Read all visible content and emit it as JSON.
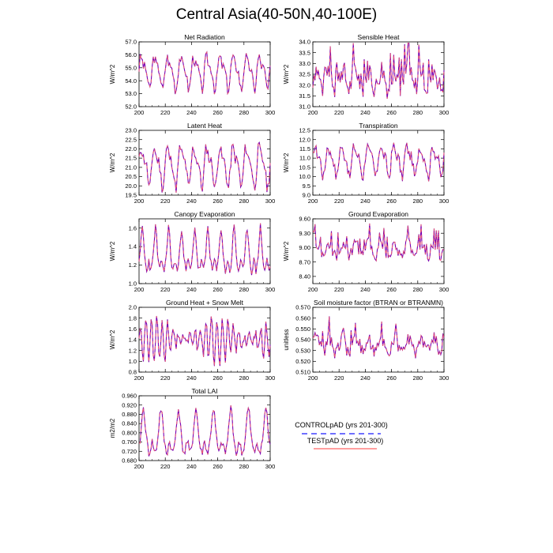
{
  "title": "Central Asia(40-50N,40-100E)",
  "colors": {
    "control": "#1a1aff",
    "test": "#ff6666",
    "overlap": "#7a00b0"
  },
  "legend": {
    "control": "CONTROLpAD (yrs 201-300)",
    "test": "TESTpAD (yrs 201-300)"
  },
  "chart_data": [
    {
      "type": "line",
      "title": "Net Radiation",
      "xlabel": "",
      "ylabel": "W/m^2",
      "xlim": [
        200,
        300
      ],
      "ylim": [
        52.0,
        57.0
      ],
      "xticks": [
        "200",
        "220",
        "240",
        "260",
        "280",
        "300"
      ],
      "yticks": [
        "52.0",
        "53.0",
        "54.0",
        "55.0",
        "56.0",
        "57.0"
      ],
      "pattern": {
        "kind": "seasonal",
        "base": 54.7,
        "amp": 1.5,
        "period": 12,
        "noise": 0.45,
        "seed": 3
      },
      "series": [
        {
          "name": "CONTROLpAD (yrs 201-300)"
        },
        {
          "name": "TESTpAD (yrs 201-300)"
        }
      ]
    },
    {
      "type": "line",
      "title": "Sensible Heat",
      "xlabel": "",
      "ylabel": "W/m^2",
      "xlim": [
        200,
        300
      ],
      "ylim": [
        31.0,
        34.0
      ],
      "xticks": [
        "200",
        "220",
        "240",
        "260",
        "280",
        "300"
      ],
      "yticks": [
        "31.0",
        "31.5",
        "32.0",
        "32.5",
        "33.0",
        "33.5",
        "34.0"
      ],
      "pattern": {
        "kind": "spiky",
        "base": 32.3,
        "amp": 0.9,
        "period": 12,
        "noise": 0.55,
        "seed": 7
      },
      "series": [
        {
          "name": "CONTROLpAD (yrs 201-300)"
        },
        {
          "name": "TESTpAD (yrs 201-300)"
        }
      ]
    },
    {
      "type": "line",
      "title": "Latent Heat",
      "xlabel": "",
      "ylabel": "W/m^2",
      "xlim": [
        200,
        300
      ],
      "ylim": [
        19.5,
        23.0
      ],
      "xticks": [
        "200",
        "220",
        "240",
        "260",
        "280",
        "300"
      ],
      "yticks": [
        "19.5",
        "20.0",
        "20.5",
        "21.0",
        "21.5",
        "22.0",
        "22.5",
        "23.0"
      ],
      "pattern": {
        "kind": "seasonal",
        "base": 21.1,
        "amp": 1.3,
        "period": 12,
        "noise": 0.35,
        "seed": 11
      },
      "series": [
        {
          "name": "CONTROLpAD (yrs 201-300)"
        },
        {
          "name": "TESTpAD (yrs 201-300)"
        }
      ]
    },
    {
      "type": "line",
      "title": "Transpiration",
      "xlabel": "",
      "ylabel": "W/m^2",
      "xlim": [
        200,
        300
      ],
      "ylim": [
        9.0,
        12.5
      ],
      "xticks": [
        "200",
        "220",
        "240",
        "260",
        "280",
        "300"
      ],
      "yticks": [
        "9.0",
        "9.5",
        "10.0",
        "10.5",
        "11.0",
        "11.5",
        "12.0",
        "12.5"
      ],
      "pattern": {
        "kind": "seasonal",
        "base": 10.9,
        "amp": 1.0,
        "period": 12,
        "noise": 0.3,
        "seed": 17
      },
      "series": [
        {
          "name": "CONTROLpAD (yrs 201-300)"
        },
        {
          "name": "TESTpAD (yrs 201-300)"
        }
      ]
    },
    {
      "type": "line",
      "title": "Canopy Evaporation",
      "xlabel": "",
      "ylabel": "W/m^2",
      "xlim": [
        200,
        300
      ],
      "ylim": [
        1.0,
        1.7
      ],
      "xticks": [
        "200",
        "220",
        "240",
        "260",
        "280",
        "300"
      ],
      "yticks": [
        "1.0",
        "1.2",
        "1.4",
        "1.6"
      ],
      "pattern": {
        "kind": "peaky",
        "base": 1.33,
        "amp": 0.3,
        "period": 12,
        "noise": 0.05,
        "seed": 23
      },
      "series": [
        {
          "name": "CONTROLpAD (yrs 201-300)"
        },
        {
          "name": "TESTpAD (yrs 201-300)"
        }
      ]
    },
    {
      "type": "line",
      "title": "Ground Evaporation",
      "xlabel": "",
      "ylabel": "W/m^2",
      "xlim": [
        200,
        300
      ],
      "ylim": [
        8.25,
        9.6
      ],
      "xticks": [
        "200",
        "220",
        "240",
        "260",
        "280",
        "300"
      ],
      "yticks": [
        "8.40",
        "8.70",
        "9.00",
        "9.30",
        "9.60"
      ],
      "pattern": {
        "kind": "spiky",
        "base": 8.95,
        "amp": 0.28,
        "period": 12,
        "noise": 0.12,
        "seed": 29
      },
      "series": [
        {
          "name": "CONTROLpAD (yrs 201-300)"
        },
        {
          "name": "TESTpAD (yrs 201-300)"
        }
      ]
    },
    {
      "type": "line",
      "title": "Ground Heat + Snow Melt",
      "xlabel": "",
      "ylabel": "W/m^2",
      "xlim": [
        200,
        300
      ],
      "ylim": [
        0.8,
        2.0
      ],
      "xticks": [
        "200",
        "220",
        "240",
        "260",
        "280",
        "300"
      ],
      "yticks": [
        "0.8",
        "1.0",
        "1.2",
        "1.4",
        "1.6",
        "1.8",
        "2.0"
      ],
      "pattern": {
        "kind": "oscillating",
        "base": 1.4,
        "amp": 0.42,
        "period": 5,
        "noise": 0.1,
        "seed": 31
      },
      "series": [
        {
          "name": "CONTROLpAD (yrs 201-300)"
        },
        {
          "name": "TESTpAD (yrs 201-300)"
        }
      ]
    },
    {
      "type": "line",
      "title": "Soil moisture factor (BTRAN or BTRANMN)",
      "xlabel": "",
      "ylabel": "unitless",
      "xlim": [
        200,
        300
      ],
      "ylim": [
        0.51,
        0.57
      ],
      "xticks": [
        "200",
        "220",
        "240",
        "260",
        "280",
        "300"
      ],
      "yticks": [
        "0.510",
        "0.520",
        "0.530",
        "0.540",
        "0.550",
        "0.560",
        "0.570"
      ],
      "pattern": {
        "kind": "spiky",
        "base": 0.535,
        "amp": 0.012,
        "period": 12,
        "noise": 0.007,
        "seed": 37
      },
      "series": [
        {
          "name": "CONTROLpAD (yrs 201-300)"
        },
        {
          "name": "TESTpAD (yrs 201-300)"
        }
      ]
    },
    {
      "type": "line",
      "title": "Total LAI",
      "xlabel": "",
      "ylabel": "m2/m2",
      "xlim": [
        200,
        300
      ],
      "ylim": [
        0.68,
        0.96
      ],
      "xticks": [
        "200",
        "220",
        "240",
        "260",
        "280",
        "300"
      ],
      "yticks": [
        "0.680",
        "0.720",
        "0.760",
        "0.800",
        "0.840",
        "0.880",
        "0.920",
        "0.960"
      ],
      "pattern": {
        "kind": "peaky",
        "base": 0.79,
        "amp": 0.12,
        "period": 16,
        "noise": 0.02,
        "seed": 41
      },
      "series": [
        {
          "name": "CONTROLpAD (yrs 201-300)"
        },
        {
          "name": "TESTpAD (yrs 201-300)"
        }
      ]
    }
  ]
}
